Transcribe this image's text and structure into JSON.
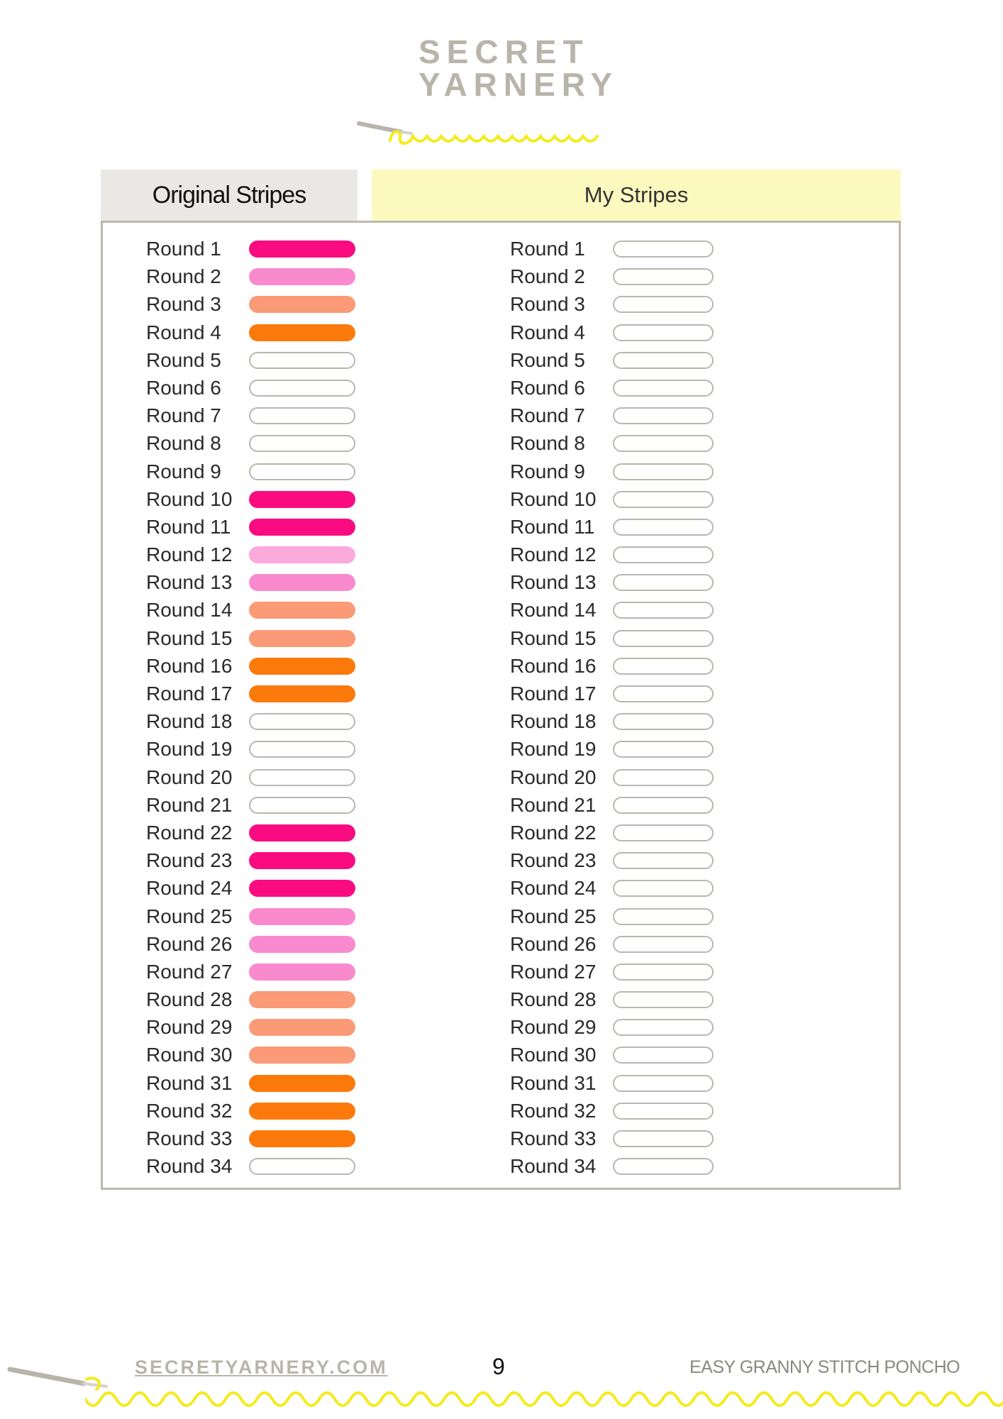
{
  "brand": {
    "line1": "SECRET",
    "line2": "YARNERY",
    "text_color": "#b9b4aa",
    "accent_color": "#f6ea1c"
  },
  "tabs": {
    "original": "Original Stripes",
    "mine": "My Stripes"
  },
  "colors": {
    "hot_pink": "#fa0b80",
    "pink": "#f98ace",
    "light_pink": "#fca9dc",
    "peach": "#fa9a76",
    "orange": "#fc7a0c",
    "blank": "#ffffff"
  },
  "original_rounds": [
    {
      "label": "Round 1",
      "color": "hot_pink"
    },
    {
      "label": "Round 2",
      "color": "pink"
    },
    {
      "label": "Round 3",
      "color": "peach"
    },
    {
      "label": "Round 4",
      "color": "orange"
    },
    {
      "label": "Round 5",
      "color": "blank"
    },
    {
      "label": "Round 6",
      "color": "blank"
    },
    {
      "label": "Round 7",
      "color": "blank"
    },
    {
      "label": "Round 8",
      "color": "blank"
    },
    {
      "label": "Round 9",
      "color": "blank"
    },
    {
      "label": "Round 10",
      "color": "hot_pink"
    },
    {
      "label": "Round 11",
      "color": "hot_pink"
    },
    {
      "label": "Round 12",
      "color": "light_pink"
    },
    {
      "label": "Round 13",
      "color": "pink"
    },
    {
      "label": "Round 14",
      "color": "peach"
    },
    {
      "label": "Round 15",
      "color": "peach"
    },
    {
      "label": "Round 16",
      "color": "orange"
    },
    {
      "label": "Round 17",
      "color": "orange"
    },
    {
      "label": "Round 18",
      "color": "blank"
    },
    {
      "label": "Round 19",
      "color": "blank"
    },
    {
      "label": "Round 20",
      "color": "blank"
    },
    {
      "label": "Round 21",
      "color": "blank"
    },
    {
      "label": "Round 22",
      "color": "hot_pink"
    },
    {
      "label": "Round 23",
      "color": "hot_pink"
    },
    {
      "label": "Round 24",
      "color": "hot_pink"
    },
    {
      "label": "Round 25",
      "color": "pink"
    },
    {
      "label": "Round 26",
      "color": "pink"
    },
    {
      "label": "Round 27",
      "color": "pink"
    },
    {
      "label": "Round 28",
      "color": "peach"
    },
    {
      "label": "Round 29",
      "color": "peach"
    },
    {
      "label": "Round 30",
      "color": "peach"
    },
    {
      "label": "Round 31",
      "color": "orange"
    },
    {
      "label": "Round 32",
      "color": "orange"
    },
    {
      "label": "Round 33",
      "color": "orange"
    },
    {
      "label": "Round 34",
      "color": "blank"
    }
  ],
  "my_rounds": [
    "Round 1",
    "Round 2",
    "Round 3",
    "Round 4",
    "Round 5",
    "Round 6",
    "Round 7",
    "Round 8",
    "Round 9",
    "Round 10",
    "Round 11",
    "Round 12",
    "Round 13",
    "Round 14",
    "Round 15",
    "Round 16",
    "Round 17",
    "Round 18",
    "Round 19",
    "Round 20",
    "Round 21",
    "Round 22",
    "Round 23",
    "Round 24",
    "Round 25",
    "Round 26",
    "Round 27",
    "Round 28",
    "Round 29",
    "Round 30",
    "Round 31",
    "Round 32",
    "Round 33",
    "Round 34"
  ],
  "footer": {
    "website": "SECRETYARNERY.COM",
    "page_number": "9",
    "document_title": "EASY GRANNY STITCH PONCHO"
  }
}
